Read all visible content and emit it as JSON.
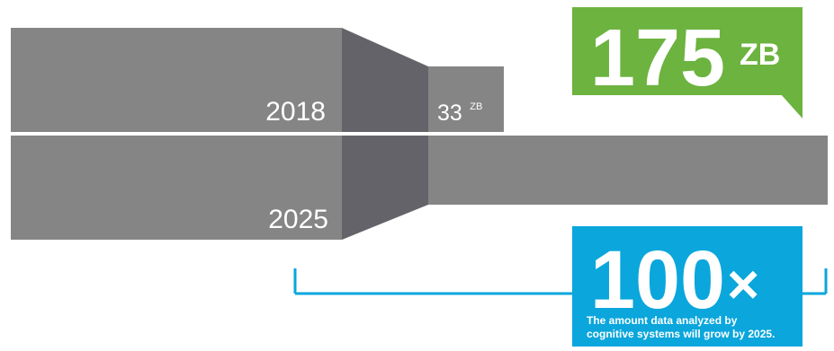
{
  "chart_data": {
    "type": "bar",
    "categories": [
      "2018",
      "2025"
    ],
    "values": [
      33,
      175
    ],
    "unit": "ZB",
    "series": [
      {
        "values": [
          33,
          175
        ]
      }
    ],
    "data_labels": [
      {
        "value": "33",
        "unit": "ZB"
      },
      {
        "value": "175",
        "unit": "ZB"
      }
    ],
    "callout": {
      "value": "100",
      "suffix": "×",
      "caption_lines": [
        "The amount data analyzed by",
        "cognitive systems will grow by 2025."
      ]
    }
  },
  "colors": {
    "block": "#858585",
    "block_dark": "#646369",
    "callout_green": "#6cb33f",
    "callout_blue": "#0aa6dc",
    "bracket": "#0aa6dc",
    "text": "#ffffff"
  }
}
